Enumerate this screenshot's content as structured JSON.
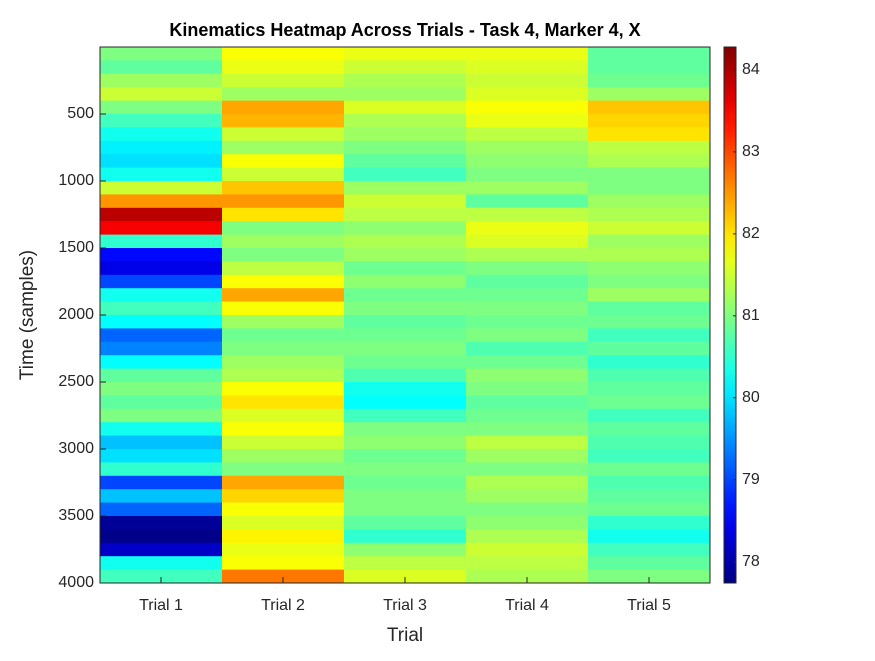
{
  "chart_data": {
    "type": "heatmap",
    "title": "Kinematics Heatmap Across Trials - Task 4, Marker 4, X",
    "xlabel": "Trial",
    "ylabel": "Time (samples)",
    "categories": [
      "Trial 1",
      "Trial 2",
      "Trial 3",
      "Trial 4",
      "Trial 5"
    ],
    "y_bins": [
      0,
      100,
      200,
      300,
      400,
      500,
      600,
      700,
      800,
      900,
      1000,
      1100,
      1200,
      1300,
      1400,
      1500,
      1600,
      1700,
      1800,
      1900,
      2000,
      2100,
      2200,
      2300,
      2400,
      2500,
      2600,
      2700,
      2800,
      2900,
      3000,
      3100,
      3200,
      3300,
      3400,
      3500,
      3600,
      3700,
      3800,
      3900,
      4000
    ],
    "values": [
      [
        81.0,
        80.8,
        81.2,
        81.5,
        81.0,
        80.6,
        80.3,
        80.1,
        80.0,
        80.3,
        81.5,
        82.5,
        83.9,
        83.5,
        80.5,
        78.6,
        78.4,
        79.0,
        80.3,
        80.6,
        80.2,
        79.2,
        79.4,
        80.2,
        80.8,
        81.0,
        80.8,
        81.0,
        80.3,
        79.8,
        80.0,
        80.5,
        79.0,
        79.8,
        79.2,
        77.9,
        77.8,
        78.2,
        80.3,
        80.6
      ],
      [
        81.8,
        81.7,
        81.5,
        81.2,
        82.4,
        82.3,
        81.5,
        81.2,
        81.8,
        81.5,
        82.2,
        82.5,
        82.0,
        81.0,
        81.2,
        81.0,
        81.4,
        81.8,
        82.4,
        81.8,
        81.2,
        80.9,
        81.0,
        81.2,
        81.3,
        81.8,
        82.0,
        81.6,
        81.8,
        81.5,
        81.2,
        81.0,
        82.4,
        82.1,
        81.8,
        81.6,
        81.9,
        81.7,
        81.8,
        82.7
      ],
      [
        81.7,
        81.5,
        81.3,
        81.2,
        81.6,
        81.3,
        81.2,
        81.0,
        80.8,
        80.6,
        81.2,
        81.5,
        81.4,
        81.1,
        81.3,
        81.2,
        80.9,
        81.1,
        80.9,
        81.0,
        80.8,
        80.9,
        81.0,
        80.9,
        80.7,
        80.3,
        80.2,
        80.6,
        81.0,
        81.1,
        80.9,
        81.0,
        80.9,
        81.0,
        81.0,
        80.8,
        80.5,
        81.1,
        81.4,
        81.6
      ],
      [
        81.7,
        81.6,
        81.5,
        81.6,
        81.8,
        81.7,
        81.4,
        81.2,
        81.1,
        81.0,
        81.2,
        80.8,
        81.4,
        81.7,
        81.6,
        81.3,
        81.0,
        80.8,
        80.9,
        81.0,
        80.9,
        81.0,
        80.7,
        80.9,
        81.1,
        81.0,
        80.8,
        80.9,
        81.0,
        81.4,
        81.2,
        81.0,
        81.3,
        81.2,
        81.0,
        81.1,
        81.3,
        81.5,
        81.4,
        81.3
      ],
      [
        80.8,
        80.8,
        80.9,
        81.2,
        82.2,
        82.1,
        82.0,
        81.4,
        81.3,
        81.0,
        81.0,
        81.2,
        81.3,
        81.5,
        81.2,
        81.3,
        81.1,
        81.0,
        81.2,
        80.8,
        80.9,
        80.6,
        80.8,
        80.5,
        80.7,
        80.8,
        80.9,
        80.6,
        80.8,
        80.7,
        80.6,
        80.9,
        80.7,
        80.8,
        80.9,
        80.5,
        80.3,
        80.6,
        80.8,
        81.0
      ]
    ],
    "ylim": [
      0,
      4000
    ],
    "yticks": [
      500,
      1000,
      1500,
      2000,
      2500,
      3000,
      3500,
      4000
    ],
    "y_reversed": true,
    "colormap": "jet",
    "clim": [
      77.74,
      84.28
    ],
    "cticks": [
      78,
      79,
      80,
      81,
      82,
      83,
      84
    ]
  }
}
